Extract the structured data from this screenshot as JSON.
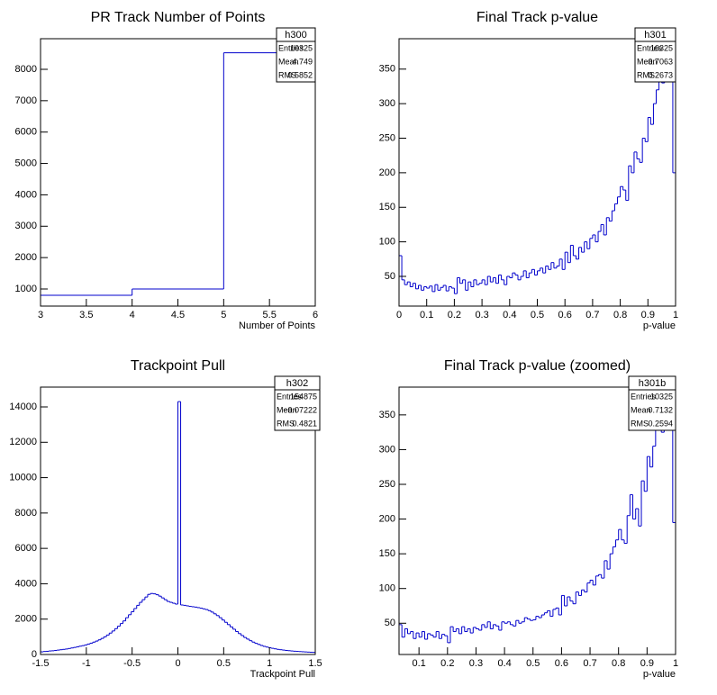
{
  "chart_data": [
    {
      "type": "histogram",
      "title": "PR Track Number of Points",
      "xlabel": "Number of Points",
      "color": "#0000cc",
      "bins": [
        3,
        4,
        5,
        6
      ],
      "values": [
        800,
        1000,
        8525
      ],
      "xlim": [
        3,
        6
      ],
      "ylim": [
        455,
        8975
      ],
      "xticks": [
        3,
        3.5,
        4,
        4.5,
        5,
        5.5,
        6
      ],
      "yticks": [
        1000,
        2000,
        3000,
        4000,
        5000,
        6000,
        7000,
        8000
      ],
      "stats": {
        "name": "h300",
        "rows": [
          [
            "Entries",
            "10325"
          ],
          [
            "Mean",
            "4.749"
          ],
          [
            "RMS",
            "0.5852"
          ]
        ]
      }
    },
    {
      "type": "histogram",
      "title": "Final Track p-value",
      "xlabel": "p-value",
      "color": "#0000cc",
      "bins": [
        0,
        0.01,
        0.02,
        0.03,
        0.04,
        0.05,
        0.06,
        0.07,
        0.08,
        0.09,
        0.1,
        0.11,
        0.12,
        0.13,
        0.14,
        0.15,
        0.16,
        0.17,
        0.18,
        0.19,
        0.2,
        0.21,
        0.22,
        0.23,
        0.24,
        0.25,
        0.26,
        0.27,
        0.28,
        0.29,
        0.3,
        0.31,
        0.32,
        0.33,
        0.34,
        0.35,
        0.36,
        0.37,
        0.38,
        0.39,
        0.4,
        0.41,
        0.42,
        0.43,
        0.44,
        0.45,
        0.46,
        0.47,
        0.48,
        0.49,
        0.5,
        0.51,
        0.52,
        0.53,
        0.54,
        0.55,
        0.56,
        0.57,
        0.58,
        0.59,
        0.6,
        0.61,
        0.62,
        0.63,
        0.64,
        0.65,
        0.66,
        0.67,
        0.68,
        0.69,
        0.7,
        0.71,
        0.72,
        0.73,
        0.74,
        0.75,
        0.76,
        0.77,
        0.78,
        0.79,
        0.8,
        0.81,
        0.82,
        0.83,
        0.84,
        0.85,
        0.86,
        0.87,
        0.88,
        0.89,
        0.9,
        0.91,
        0.92,
        0.93,
        0.94,
        0.95,
        0.96,
        0.97,
        0.98,
        0.99,
        1
      ],
      "values": [
        80,
        45,
        38,
        42,
        35,
        40,
        32,
        37,
        30,
        35,
        33,
        36,
        28,
        38,
        30,
        34,
        37,
        29,
        35,
        33,
        25,
        48,
        40,
        45,
        30,
        42,
        35,
        45,
        38,
        40,
        45,
        38,
        50,
        42,
        48,
        40,
        52,
        45,
        38,
        50,
        48,
        55,
        52,
        45,
        50,
        58,
        48,
        55,
        60,
        52,
        58,
        62,
        55,
        65,
        60,
        70,
        62,
        65,
        75,
        60,
        85,
        70,
        95,
        80,
        75,
        92,
        85,
        100,
        90,
        105,
        110,
        100,
        115,
        125,
        110,
        135,
        130,
        145,
        155,
        165,
        180,
        175,
        160,
        210,
        200,
        230,
        220,
        215,
        250,
        245,
        280,
        270,
        300,
        320,
        350,
        330,
        380,
        400,
        380,
        200
      ],
      "xlim": [
        0,
        1
      ],
      "ylim": [
        7,
        394
      ],
      "xticks": [
        0,
        0.1,
        0.2,
        0.3,
        0.4,
        0.5,
        0.6,
        0.7,
        0.8,
        0.9,
        1
      ],
      "yticks": [
        50,
        100,
        150,
        200,
        250,
        300,
        350
      ],
      "stats": {
        "name": "h301",
        "rows": [
          [
            "Entries",
            "10325"
          ],
          [
            "Mean",
            "0.7063"
          ],
          [
            "RMS",
            "0.2673"
          ]
        ]
      }
    },
    {
      "type": "histogram",
      "title": "Trackpoint Pull",
      "xlabel": "Trackpoint Pull",
      "color": "#0000cc",
      "bins": [
        -1.5,
        -1.47,
        -1.44,
        -1.41,
        -1.38,
        -1.35,
        -1.32,
        -1.29,
        -1.26,
        -1.23,
        -1.2,
        -1.17,
        -1.14,
        -1.11,
        -1.08,
        -1.05,
        -1.02,
        -0.99,
        -0.96,
        -0.93,
        -0.9,
        -0.87,
        -0.84,
        -0.81,
        -0.78,
        -0.75,
        -0.72,
        -0.69,
        -0.66,
        -0.63,
        -0.6,
        -0.57,
        -0.54,
        -0.51,
        -0.48,
        -0.45,
        -0.42,
        -0.39,
        -0.36,
        -0.33,
        -0.3,
        -0.27,
        -0.24,
        -0.21,
        -0.18,
        -0.15,
        -0.12,
        -0.09,
        -0.06,
        -0.03,
        0,
        0.03,
        0.06,
        0.09,
        0.12,
        0.15,
        0.18,
        0.21,
        0.24,
        0.27,
        0.3,
        0.33,
        0.36,
        0.39,
        0.42,
        0.45,
        0.48,
        0.51,
        0.54,
        0.57,
        0.6,
        0.63,
        0.66,
        0.69,
        0.72,
        0.75,
        0.78,
        0.81,
        0.84,
        0.87,
        0.9,
        0.93,
        0.96,
        0.99,
        1.02,
        1.05,
        1.08,
        1.11,
        1.14,
        1.17,
        1.2,
        1.23,
        1.26,
        1.29,
        1.32,
        1.35,
        1.38,
        1.41,
        1.44,
        1.47,
        1.5
      ],
      "values": [
        150,
        170,
        180,
        200,
        210,
        230,
        250,
        270,
        290,
        310,
        340,
        370,
        400,
        430,
        470,
        500,
        540,
        590,
        640,
        700,
        760,
        830,
        910,
        1000,
        1100,
        1210,
        1330,
        1460,
        1600,
        1750,
        1900,
        2080,
        2250,
        2420,
        2600,
        2780,
        2950,
        3100,
        3250,
        3400,
        3450,
        3430,
        3380,
        3300,
        3200,
        3100,
        3000,
        2950,
        2900,
        2850,
        14300,
        2800,
        2780,
        2750,
        2720,
        2700,
        2680,
        2650,
        2620,
        2580,
        2540,
        2480,
        2400,
        2300,
        2200,
        2080,
        1950,
        1820,
        1690,
        1560,
        1430,
        1300,
        1180,
        1070,
        960,
        870,
        780,
        700,
        630,
        570,
        510,
        460,
        420,
        380,
        350,
        320,
        290,
        270,
        250,
        230,
        215,
        200,
        185,
        175,
        165,
        155,
        145,
        135,
        125,
        120
      ],
      "xlim": [
        -1.5,
        1.5
      ],
      "ylim": [
        0,
        15120
      ],
      "xticks": [
        -1.5,
        -1,
        -0.5,
        0,
        0.5,
        1,
        1.5
      ],
      "yticks": [
        0,
        2000,
        4000,
        6000,
        8000,
        10000,
        12000,
        14000
      ],
      "stats": {
        "name": "h302",
        "rows": [
          [
            "Entries",
            "154875"
          ],
          [
            "Mean",
            "−0.07222"
          ],
          [
            "RMS",
            "0.4821"
          ]
        ]
      }
    },
    {
      "type": "histogram",
      "title": "Final Track p-value (zoomed)",
      "xlabel": "p-value",
      "color": "#0000cc",
      "bins": [
        0.03,
        0.04,
        0.05,
        0.06,
        0.07,
        0.08,
        0.09,
        0.1,
        0.11,
        0.12,
        0.13,
        0.14,
        0.15,
        0.16,
        0.17,
        0.18,
        0.19,
        0.2,
        0.21,
        0.22,
        0.23,
        0.24,
        0.25,
        0.26,
        0.27,
        0.28,
        0.29,
        0.3,
        0.31,
        0.32,
        0.33,
        0.34,
        0.35,
        0.36,
        0.37,
        0.38,
        0.39,
        0.4,
        0.41,
        0.42,
        0.43,
        0.44,
        0.45,
        0.46,
        0.47,
        0.48,
        0.49,
        0.5,
        0.51,
        0.52,
        0.53,
        0.54,
        0.55,
        0.56,
        0.57,
        0.58,
        0.59,
        0.6,
        0.61,
        0.62,
        0.63,
        0.64,
        0.65,
        0.66,
        0.67,
        0.68,
        0.69,
        0.7,
        0.71,
        0.72,
        0.73,
        0.74,
        0.75,
        0.76,
        0.77,
        0.78,
        0.79,
        0.8,
        0.81,
        0.82,
        0.83,
        0.84,
        0.85,
        0.86,
        0.87,
        0.88,
        0.89,
        0.9,
        0.91,
        0.92,
        0.93,
        0.94,
        0.95,
        0.96,
        0.97,
        0.98,
        0.99,
        1
      ],
      "values": [
        48,
        30,
        42,
        35,
        38,
        28,
        36,
        30,
        38,
        27,
        35,
        33,
        30,
        38,
        28,
        34,
        32,
        22,
        45,
        38,
        42,
        35,
        45,
        38,
        42,
        36,
        44,
        42,
        40,
        48,
        44,
        52,
        42,
        48,
        46,
        40,
        52,
        50,
        52,
        48,
        46,
        54,
        50,
        52,
        58,
        56,
        54,
        55,
        60,
        58,
        62,
        65,
        68,
        60,
        70,
        72,
        62,
        90,
        75,
        88,
        82,
        78,
        95,
        90,
        98,
        95,
        108,
        112,
        105,
        118,
        120,
        115,
        140,
        128,
        150,
        160,
        170,
        185,
        170,
        165,
        205,
        235,
        200,
        215,
        190,
        255,
        240,
        290,
        275,
        305,
        330,
        345,
        325,
        375,
        410,
        385,
        195
      ],
      "xlim": [
        0.03,
        1
      ],
      "ylim": [
        5,
        390
      ],
      "xticks": [
        0.1,
        0.2,
        0.3,
        0.4,
        0.5,
        0.6,
        0.7,
        0.8,
        0.9,
        1
      ],
      "yticks": [
        50,
        100,
        150,
        200,
        250,
        300,
        350
      ],
      "stats": {
        "name": "h301b",
        "rows": [
          [
            "Entries",
            "10325"
          ],
          [
            "Mean",
            "0.7132"
          ],
          [
            "RMS",
            "0.2594"
          ]
        ]
      }
    }
  ]
}
